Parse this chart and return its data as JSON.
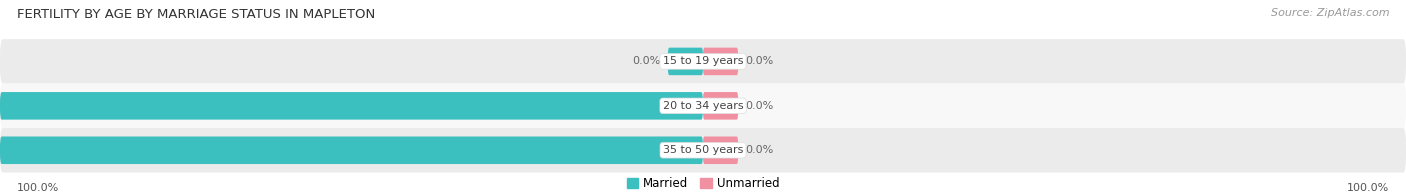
{
  "title": "FERTILITY BY AGE BY MARRIAGE STATUS IN MAPLETON",
  "source": "Source: ZipAtlas.com",
  "categories": [
    "15 to 19 years",
    "20 to 34 years",
    "35 to 50 years"
  ],
  "married_values": [
    0.0,
    100.0,
    100.0
  ],
  "unmarried_values": [
    0.0,
    0.0,
    0.0
  ],
  "married_color": "#3bbfbf",
  "unmarried_color": "#f090a0",
  "bar_bg_color_odd": "#f0f0f0",
  "bar_bg_color_even": "#ffffff",
  "bar_height": 0.62,
  "title_fontsize": 9.5,
  "source_fontsize": 8,
  "label_fontsize": 8,
  "category_fontsize": 8,
  "legend_fontsize": 8.5,
  "bg_color": "#ffffff",
  "axis_label_left": "100.0%",
  "axis_label_right": "100.0%",
  "row_bg_colors": [
    "#ebebeb",
    "#f8f8f8",
    "#ebebeb"
  ]
}
